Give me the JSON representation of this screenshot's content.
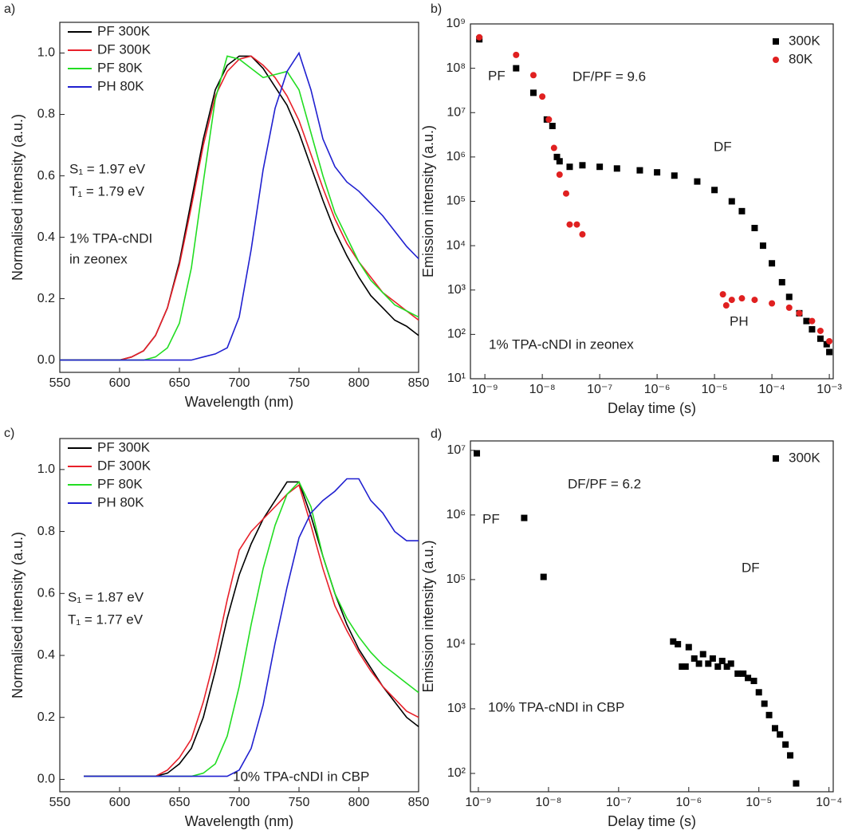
{
  "chart_data": [
    {
      "type": "line",
      "panel_label": "a)",
      "xlabel": "Wavelength (nm)",
      "ylabel": "Normalised intensity (a.u.)",
      "xlim": [
        550,
        850
      ],
      "ylim": [
        -0.04,
        1.1
      ],
      "xticks": [
        550,
        600,
        650,
        700,
        750,
        800,
        850
      ],
      "yticks": [
        {
          "value": 0,
          "label": "0.0"
        },
        0.2,
        0.4,
        0.6,
        0.8,
        {
          "value": 1,
          "label": "1.0"
        }
      ],
      "legend": "top-left",
      "x": [
        550,
        560,
        570,
        580,
        590,
        600,
        610,
        620,
        630,
        640,
        650,
        660,
        670,
        680,
        690,
        700,
        710,
        720,
        730,
        740,
        750,
        760,
        770,
        780,
        790,
        800,
        810,
        820,
        830,
        840,
        850
      ],
      "series": [
        {
          "name": "PF 300K",
          "color": "#000000",
          "values": [
            0,
            0,
            0,
            0,
            0,
            0,
            0.01,
            0.03,
            0.08,
            0.17,
            0.32,
            0.52,
            0.72,
            0.88,
            0.96,
            0.99,
            0.99,
            0.95,
            0.89,
            0.83,
            0.74,
            0.63,
            0.52,
            0.42,
            0.34,
            0.27,
            0.21,
            0.17,
            0.13,
            0.11,
            0.08
          ]
        },
        {
          "name": "DF 300K",
          "color": "#e8202a",
          "values": [
            0,
            0,
            0,
            0,
            0,
            0,
            0.01,
            0.03,
            0.08,
            0.17,
            0.31,
            0.5,
            0.7,
            0.86,
            0.94,
            0.98,
            0.99,
            0.96,
            0.92,
            0.86,
            0.78,
            0.67,
            0.56,
            0.46,
            0.38,
            0.32,
            0.27,
            0.22,
            0.19,
            0.16,
            0.13
          ]
        },
        {
          "name": "PF 80K",
          "color": "#22dd22",
          "values": [
            0,
            0,
            0,
            0,
            0,
            0,
            0,
            0,
            0.01,
            0.04,
            0.12,
            0.3,
            0.58,
            0.85,
            0.99,
            0.98,
            0.95,
            0.92,
            0.93,
            0.94,
            0.88,
            0.74,
            0.6,
            0.48,
            0.4,
            0.32,
            0.26,
            0.22,
            0.18,
            0.16,
            0.14
          ]
        },
        {
          "name": "PH 80K",
          "color": "#2020d0",
          "values": [
            0,
            0,
            0,
            0,
            0,
            0,
            0,
            0,
            0,
            0,
            0,
            0,
            0.01,
            0.02,
            0.04,
            0.14,
            0.36,
            0.62,
            0.82,
            0.94,
            1.0,
            0.88,
            0.72,
            0.63,
            0.58,
            0.55,
            0.51,
            0.47,
            0.42,
            0.37,
            0.33
          ]
        }
      ],
      "annotations": [
        "S₁ = 1.97 eV",
        "T₁ = 1.79 eV",
        "1% TPA-cNDI",
        "in zeonex"
      ]
    },
    {
      "type": "scatter",
      "panel_label": "b)",
      "xlabel": "Delay time (s)",
      "ylabel": "Emission intensity (a.u.)",
      "xscale": "log",
      "yscale": "log",
      "xlim": [
        5.6e-10,
        0.00117
      ],
      "ylim": [
        10,
        1000000000.0
      ],
      "xticks": [
        {
          "value": 1e-09,
          "label": "10⁻⁹"
        },
        {
          "value": 1e-08,
          "label": "10⁻⁸"
        },
        {
          "value": 1e-07,
          "label": "10⁻⁷"
        },
        {
          "value": 1e-06,
          "label": "10⁻⁶"
        },
        {
          "value": 1e-05,
          "label": "10⁻⁵"
        },
        {
          "value": 0.0001,
          "label": "10⁻⁴"
        },
        {
          "value": 0.001,
          "label": "10⁻³"
        }
      ],
      "yticks": [
        {
          "value": 10,
          "label": "10¹"
        },
        {
          "value": 100,
          "label": "10²"
        },
        {
          "value": 1000,
          "label": "10³"
        },
        {
          "value": 10000,
          "label": "10⁴"
        },
        {
          "value": 100000,
          "label": "10⁵"
        },
        {
          "value": 1000000,
          "label": "10⁶"
        },
        {
          "value": 10000000,
          "label": "10⁷"
        },
        {
          "value": 100000000,
          "label": "10⁸"
        },
        {
          "value": 1000000000,
          "label": "10⁹"
        }
      ],
      "legend": "top-right",
      "series": [
        {
          "name": "300K",
          "color": "#000000",
          "marker": "square",
          "x": [
            8e-10,
            3.5e-09,
            7e-09,
            1.2e-08,
            1.5e-08,
            1.8e-08,
            2e-08,
            3e-08,
            5e-08,
            1e-07,
            2e-07,
            5e-07,
            1e-06,
            2e-06,
            5e-06,
            1e-05,
            2e-05,
            3e-05,
            5e-05,
            7e-05,
            0.0001,
            0.00015,
            0.0002,
            0.0003,
            0.0004,
            0.0005,
            0.0007,
            0.0009,
            0.001
          ],
          "values": [
            450000000.0,
            100000000.0,
            28000000.0,
            7000000.0,
            5000000.0,
            1000000.0,
            800000.0,
            600000.0,
            650000.0,
            600000.0,
            550000.0,
            500000.0,
            450000.0,
            380000.0,
            280000.0,
            180000.0,
            100000.0,
            60000.0,
            25000.0,
            10000.0,
            4000.0,
            1500.0,
            700.0,
            300.0,
            200.0,
            130.0,
            80.0,
            60.0,
            40.0
          ]
        },
        {
          "name": "80K",
          "color": "#e02020",
          "marker": "circle",
          "x": [
            8e-10,
            3.5e-09,
            7e-09,
            1e-08,
            1.3e-08,
            1.6e-08,
            2e-08,
            2.6e-08,
            3e-08,
            4e-08,
            5e-08,
            1.4e-05,
            1.6e-05,
            2e-05,
            3e-05,
            5e-05,
            0.0001,
            0.0002,
            0.0003,
            0.0005,
            0.0007,
            0.001
          ],
          "values": [
            500000000.0,
            200000000.0,
            70000000.0,
            23000000.0,
            7000000.0,
            1600000.0,
            400000.0,
            150000.0,
            30000.0,
            30000.0,
            18000.0,
            800.0,
            450.0,
            600.0,
            650.0,
            600.0,
            500.0,
            400.0,
            300.0,
            200.0,
            120.0,
            70.0
          ]
        }
      ],
      "annotations": [
        "PF",
        "DF/PF = 9.6",
        "DF",
        "PH",
        "1% TPA-cNDI in zeonex"
      ]
    },
    {
      "type": "line",
      "panel_label": "c)",
      "xlabel": "Wavelength (nm)",
      "ylabel": "Normalised intensity (a.u.)",
      "xlim": [
        550,
        850
      ],
      "ylim": [
        -0.04,
        1.1
      ],
      "xticks": [
        550,
        600,
        650,
        700,
        750,
        800,
        850
      ],
      "yticks": [
        {
          "value": 0,
          "label": "0.0"
        },
        0.2,
        0.4,
        0.6,
        0.8,
        {
          "value": 1,
          "label": "1.0"
        }
      ],
      "legend": "top-left",
      "x": [
        570,
        580,
        590,
        600,
        610,
        620,
        630,
        640,
        650,
        660,
        670,
        680,
        690,
        700,
        710,
        720,
        730,
        740,
        750,
        760,
        770,
        780,
        790,
        800,
        810,
        820,
        830,
        840,
        850
      ],
      "series": [
        {
          "name": "PF 300K",
          "color": "#000000",
          "values": [
            0.01,
            0.01,
            0.01,
            0.01,
            0.01,
            0.01,
            0.01,
            0.02,
            0.05,
            0.1,
            0.2,
            0.35,
            0.52,
            0.66,
            0.76,
            0.84,
            0.9,
            0.96,
            0.96,
            0.85,
            0.72,
            0.6,
            0.5,
            0.42,
            0.36,
            0.3,
            0.25,
            0.2,
            0.17
          ]
        },
        {
          "name": "DF 300K",
          "color": "#e8202a",
          "values": [
            0.01,
            0.01,
            0.01,
            0.01,
            0.01,
            0.01,
            0.01,
            0.03,
            0.07,
            0.13,
            0.25,
            0.4,
            0.58,
            0.74,
            0.8,
            0.84,
            0.88,
            0.92,
            0.95,
            0.82,
            0.68,
            0.56,
            0.48,
            0.41,
            0.35,
            0.3,
            0.26,
            0.22,
            0.2
          ]
        },
        {
          "name": "PF 80K",
          "color": "#22dd22",
          "values": [
            0.01,
            0.01,
            0.01,
            0.01,
            0.01,
            0.01,
            0.01,
            0.01,
            0.01,
            0.01,
            0.02,
            0.05,
            0.14,
            0.3,
            0.5,
            0.68,
            0.82,
            0.92,
            0.96,
            0.88,
            0.72,
            0.6,
            0.52,
            0.46,
            0.41,
            0.37,
            0.34,
            0.31,
            0.28
          ]
        },
        {
          "name": "PH 80K",
          "color": "#2020d0",
          "values": [
            0.01,
            0.01,
            0.01,
            0.01,
            0.01,
            0.01,
            0.01,
            0.01,
            0.01,
            0.01,
            0.01,
            0.01,
            0.01,
            0.03,
            0.1,
            0.24,
            0.44,
            0.62,
            0.78,
            0.86,
            0.9,
            0.93,
            0.97,
            0.97,
            0.9,
            0.86,
            0.8,
            0.77,
            0.77
          ]
        }
      ],
      "annotations": [
        "S₁ = 1.87 eV",
        "T₁ = 1.77 eV",
        "10% TPA-cNDI in CBP"
      ]
    },
    {
      "type": "scatter",
      "panel_label": "d)",
      "xlabel": "Delay time (s)",
      "ylabel": "Emission intensity (a.u.)",
      "xscale": "log",
      "yscale": "log",
      "xlim": [
        7.7e-10,
        0.000115
      ],
      "ylim": [
        52,
        14000000.0
      ],
      "xticks": [
        {
          "value": 1e-09,
          "label": "10⁻⁹"
        },
        {
          "value": 1e-08,
          "label": "10⁻⁸"
        },
        {
          "value": 1e-07,
          "label": "10⁻⁷"
        },
        {
          "value": 1e-06,
          "label": "10⁻⁶"
        },
        {
          "value": 1e-05,
          "label": "10⁻⁵"
        },
        {
          "value": 0.0001,
          "label": "10⁻⁴"
        }
      ],
      "yticks": [
        {
          "value": 100,
          "label": "10²"
        },
        {
          "value": 1000,
          "label": "10³"
        },
        {
          "value": 10000,
          "label": "10⁴"
        },
        {
          "value": 100000,
          "label": "10⁵"
        },
        {
          "value": 1000000,
          "label": "10⁶"
        },
        {
          "value": 10000000,
          "label": "10⁷"
        }
      ],
      "legend": "top-right",
      "series": [
        {
          "name": "300K",
          "color": "#000000",
          "marker": "square",
          "x": [
            9.5e-10,
            4.5e-09,
            8.5e-09,
            6e-07,
            7e-07,
            8e-07,
            9e-07,
            1e-06,
            1.2e-06,
            1.4e-06,
            1.6e-06,
            1.9e-06,
            2.2e-06,
            2.6e-06,
            3e-06,
            3.5e-06,
            4e-06,
            5e-06,
            6e-06,
            7e-06,
            8.5e-06,
            1e-05,
            1.2e-05,
            1.4e-05,
            1.7e-05,
            2e-05,
            2.4e-05,
            2.8e-05,
            3.4e-05
          ],
          "values": [
            9000000.0,
            900000.0,
            110000.0,
            11000.0,
            10000.0,
            4500.0,
            4500.0,
            9000.0,
            6000.0,
            5000.0,
            7000.0,
            5000.0,
            6000.0,
            4500.0,
            5500.0,
            4500.0,
            5000.0,
            3500.0,
            3500.0,
            3000.0,
            2700.0,
            1800.0,
            1200.0,
            800.0,
            500.0,
            400.0,
            280.0,
            190.0,
            70.0
          ]
        }
      ],
      "annotations": [
        "PF",
        "DF/PF = 6.2",
        "DF",
        "10% TPA-cNDI in CBP"
      ]
    }
  ]
}
